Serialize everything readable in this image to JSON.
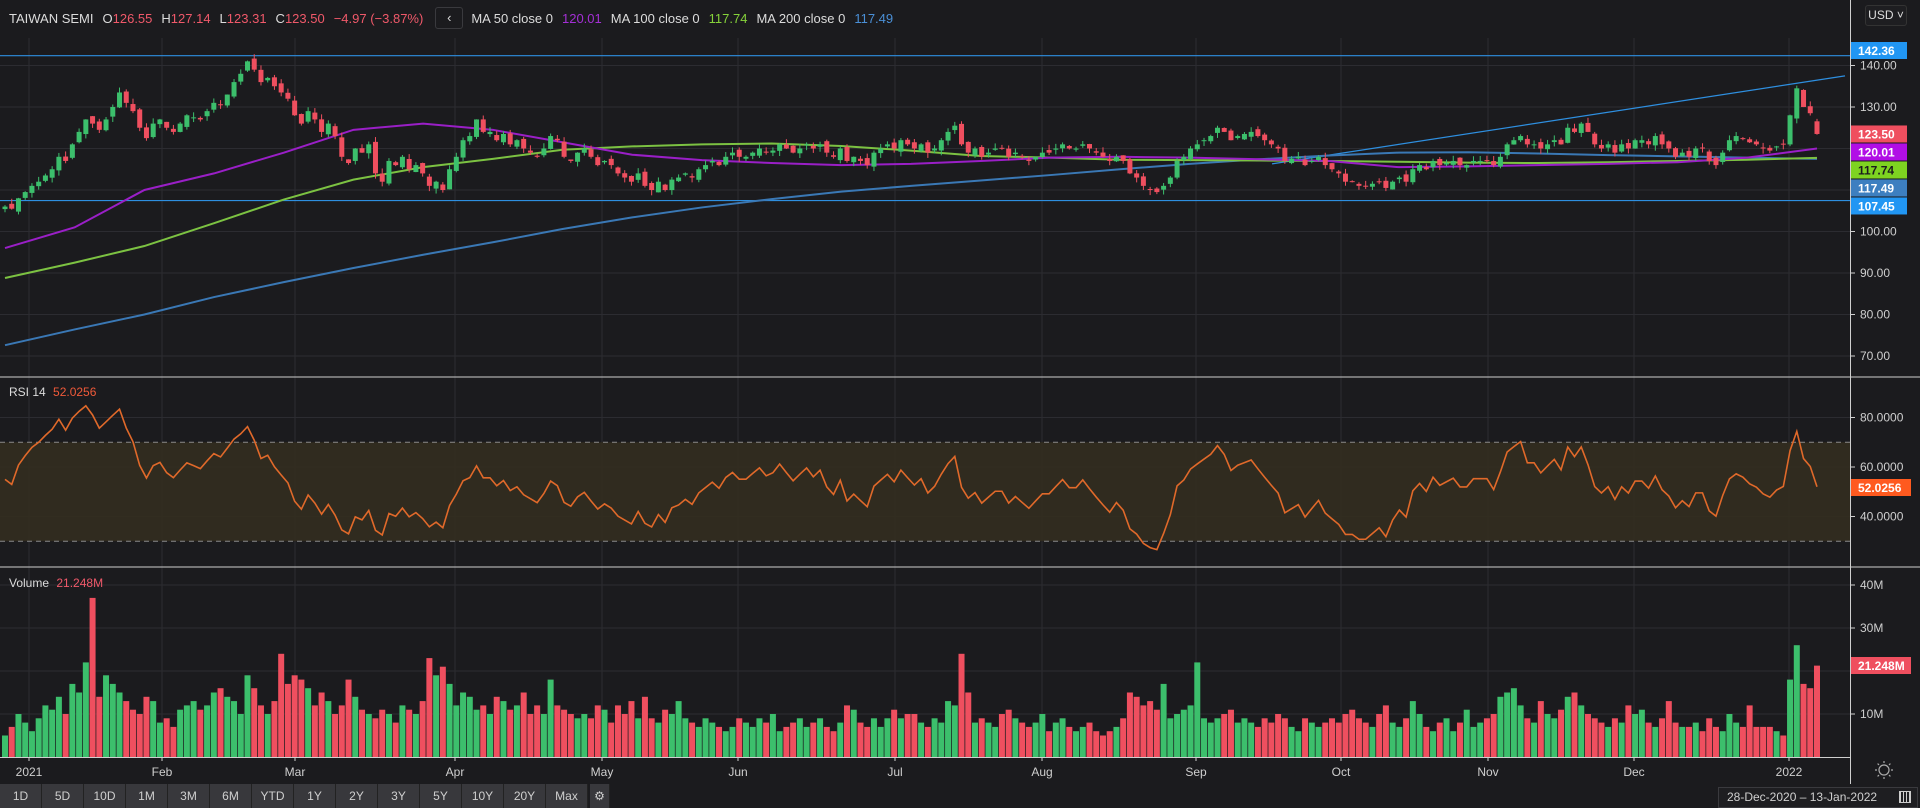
{
  "header": {
    "symbol": "TAIWAN SEMI",
    "o_label": "O",
    "o": "126.55",
    "h_label": "H",
    "h": "127.14",
    "l_label": "L",
    "l": "123.31",
    "c_label": "C",
    "c": "123.50",
    "change": "−4.97 (−3.87%)",
    "collapse_icon": "‹",
    "ma50_label": "MA 50 close 0",
    "ma50": "120.01",
    "ma100_label": "MA 100 close 0",
    "ma100": "117.74",
    "ma200_label": "MA 200 close 0",
    "ma200": "117.49"
  },
  "currency": "USD ˅",
  "rsi": {
    "label": "RSI 14",
    "value": "52.0256"
  },
  "volume": {
    "label": "Volume",
    "value": "21.248M"
  },
  "price_badges": [
    {
      "value": "142.36",
      "color": "#2196f3",
      "text_color": "#ffffff"
    },
    {
      "value": "123.50",
      "color": "#ef4f5f",
      "text_color": "#ffffff"
    },
    {
      "value": "120.01",
      "color": "#b10ee6",
      "text_color": "#ffffff"
    },
    {
      "value": "117.74",
      "color": "#7ed321",
      "text_color": "#1b1b1e"
    },
    {
      "value": "117.49",
      "color": "#3d7fc0",
      "text_color": "#ffffff"
    },
    {
      "value": "107.45",
      "color": "#2196f3",
      "text_color": "#ffffff"
    }
  ],
  "range_buttons": [
    "1D",
    "5D",
    "10D",
    "1M",
    "3M",
    "6M",
    "YTD",
    "1Y",
    "2Y",
    "3Y",
    "5Y",
    "10Y",
    "20Y",
    "Max"
  ],
  "settings_icon": "⚙",
  "date_range": "28-Dec-2020  –  13-Jan-2022",
  "chart_data": {
    "type": "candlestick",
    "colors": {
      "up": "#3cbf6c",
      "down": "#ef4f5f",
      "ma50": "#9a1fc7",
      "ma100": "#7cc242",
      "ma200": "#3a78b5",
      "rsi": "#e0692a",
      "levels": "#2e8fe0"
    },
    "closes": [
      106,
      105.5,
      108,
      109.5,
      111,
      112,
      113.5,
      115,
      118,
      117,
      121,
      124,
      127,
      126,
      124.5,
      127,
      130,
      133.5,
      131,
      129,
      125,
      122.5,
      126,
      127,
      125,
      124,
      126,
      128,
      127.5,
      127,
      129,
      131,
      130.5,
      133,
      136,
      138,
      141,
      139,
      136,
      137,
      135,
      133.5,
      132,
      128,
      126,
      129,
      127,
      124,
      126,
      123,
      118,
      116.5,
      120,
      119,
      121,
      114,
      112,
      117,
      116,
      118,
      115,
      116,
      114,
      111,
      112,
      110,
      115,
      118,
      122,
      123,
      127,
      124,
      124,
      122,
      123.5,
      121,
      122,
      120,
      119,
      118,
      120,
      123,
      122,
      118,
      117,
      119,
      120,
      118,
      116,
      117,
      116,
      114,
      113,
      112,
      114,
      111,
      110,
      112,
      110,
      112.5,
      113,
      114,
      113,
      115,
      116,
      117,
      116,
      118,
      119,
      118,
      118,
      119,
      120,
      119,
      119.5,
      121,
      120,
      119,
      120,
      121,
      120,
      121,
      119,
      118,
      120,
      117,
      118,
      117,
      116,
      119,
      120,
      121,
      120,
      122,
      121,
      120,
      121,
      119,
      120,
      122,
      124,
      125.5,
      121,
      119,
      120,
      118,
      119,
      120,
      120,
      118,
      119,
      118,
      117,
      118,
      119,
      119,
      120,
      121,
      120,
      120,
      121,
      120,
      119,
      118,
      117,
      118,
      117,
      114,
      113,
      111,
      110,
      109.5,
      111,
      113,
      117,
      118,
      120,
      121,
      122,
      123,
      125,
      124,
      122,
      123,
      123.5,
      124,
      123,
      122,
      121,
      120,
      117,
      117.5,
      118,
      116,
      117,
      118,
      116,
      115,
      114,
      112,
      112,
      111,
      111,
      111.5,
      112,
      110.5,
      112,
      113,
      112,
      115,
      116,
      115,
      117,
      116,
      116.5,
      117,
      116,
      116,
      117,
      117,
      117,
      116,
      118,
      121,
      122,
      123,
      121,
      121,
      120,
      121,
      122,
      121,
      125,
      124,
      126,
      124,
      121,
      120,
      121,
      119,
      121,
      120,
      122,
      122,
      121,
      123,
      121,
      120,
      118,
      119,
      118,
      120,
      120,
      117,
      116,
      119,
      122,
      123,
      122.5,
      121.5,
      121,
      120,
      119.5,
      120.5,
      121,
      128,
      134.5,
      130,
      128.5,
      123.5
    ],
    "last_candle": {
      "open": 126.55,
      "high": 127.14,
      "low": 123.31,
      "close": 123.5
    },
    "volumes_m": [
      5,
      7,
      10,
      8,
      6,
      9,
      12,
      11,
      14,
      10,
      17,
      15,
      22,
      37,
      14,
      19,
      17,
      15,
      13,
      11,
      10,
      14,
      13,
      8,
      9,
      7,
      11,
      12,
      13,
      11,
      12,
      15,
      16,
      14,
      13,
      10,
      19,
      16,
      12,
      10,
      13,
      24,
      17,
      19,
      18,
      16,
      12,
      15,
      13,
      10,
      12,
      18,
      14,
      11,
      10,
      9,
      11,
      10,
      8,
      12,
      11,
      10,
      13,
      23,
      19,
      21,
      17,
      12,
      15,
      14,
      11,
      12,
      10,
      14,
      13,
      11,
      12,
      15,
      10,
      12,
      10,
      18,
      12,
      11,
      10,
      9,
      10,
      9,
      12,
      11,
      8,
      12,
      10,
      13,
      9,
      14,
      9,
      8,
      11,
      10,
      13,
      9,
      8,
      7,
      9,
      8,
      7,
      6,
      7,
      9,
      8,
      7,
      9,
      8,
      10,
      6,
      7,
      8,
      9,
      7,
      8,
      9,
      7,
      6,
      8,
      12,
      11,
      8,
      7,
      9,
      7,
      9,
      11,
      9,
      10,
      10,
      8,
      7,
      9,
      8,
      13,
      12,
      24,
      15,
      8,
      9,
      8,
      7,
      10,
      11,
      9,
      8,
      7,
      8,
      10,
      6,
      8,
      9,
      7,
      6,
      7,
      8,
      6,
      5,
      6,
      7,
      9,
      15,
      14,
      12,
      13,
      11,
      17,
      9,
      10,
      11,
      12,
      22,
      9,
      8,
      9,
      10,
      11,
      8,
      9,
      8,
      7,
      9,
      8,
      10,
      9,
      7,
      6,
      9,
      8,
      7,
      8,
      9,
      8,
      10,
      11,
      9,
      8,
      7,
      10,
      12,
      8,
      7,
      9,
      13,
      10,
      7,
      6,
      8,
      9,
      6,
      8,
      11,
      7,
      8,
      9,
      10,
      14,
      15,
      16,
      12,
      9,
      8,
      13,
      10,
      9,
      11,
      14,
      15,
      12,
      10,
      9,
      8,
      7,
      9,
      8,
      12,
      10,
      11,
      8,
      7,
      9,
      13,
      8,
      7,
      7,
      8,
      6,
      9,
      7,
      6,
      10,
      8,
      7,
      12,
      7,
      7,
      7,
      6,
      5,
      18,
      26,
      17,
      16,
      21.248
    ],
    "ma50_sampled": [
      96,
      101,
      110,
      114,
      119,
      124.5,
      126,
      124.5,
      121.5,
      118.5,
      117.2,
      116.5,
      116,
      116.3,
      117,
      117.8,
      118,
      117.8,
      117.4,
      117,
      115.5,
      115.7,
      116,
      116.3,
      116.7,
      117.8,
      120.01
    ],
    "ma100_sampled": [
      88.8,
      92.5,
      96.5,
      102,
      107.7,
      112.5,
      115.5,
      117.5,
      119.7,
      120.5,
      121,
      121.2,
      120.6,
      119.5,
      118.2,
      117.8,
      117.3,
      117.2,
      117.1,
      117,
      116.8,
      116.6,
      116.5,
      116.7,
      117,
      117.3,
      117.74
    ],
    "ma200_sampled": [
      72.6,
      76.4,
      80,
      84.2,
      87.8,
      91.2,
      94.4,
      97.4,
      100.6,
      103.4,
      105.8,
      107.8,
      109.6,
      111,
      112.3,
      113.6,
      115,
      116.3,
      117.4,
      118.3,
      119,
      119.1,
      118.8,
      118.4,
      118.1,
      117.8,
      117.49
    ],
    "horizontal_levels": [
      142.36,
      107.45
    ],
    "trendline": {
      "start_price": 116.3,
      "end_price": 137.5
    },
    "price_ticks": [
      "140.00",
      "130.00",
      "100.00",
      "90.00",
      "80.00",
      "70.00"
    ],
    "price_ylim": [
      65,
      150
    ],
    "rsi_period": 14,
    "rsi_band": [
      30,
      70
    ],
    "rsi_ticks": [
      "80.0000",
      "60.0000",
      "40.0000"
    ],
    "volume_ticks": [
      "40M",
      "30M",
      "10M"
    ],
    "x_labels": [
      "2021",
      "Feb",
      "Mar",
      "Apr",
      "May",
      "Jun",
      "Jul",
      "Aug",
      "Sep",
      "Oct",
      "Nov",
      "Dec",
      "2022"
    ]
  }
}
